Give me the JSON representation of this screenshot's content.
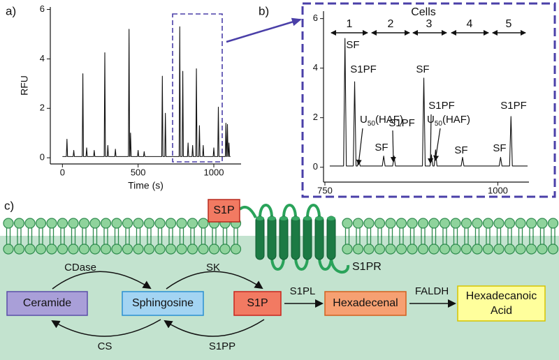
{
  "panel_labels": [
    "a)",
    "b)",
    "c)"
  ],
  "chart_data": [
    {
      "type": "line",
      "x_label": "Time (s)",
      "y_label": "RFU",
      "color": "#111111",
      "xlim": [
        -80,
        1180
      ],
      "xticks": [
        0,
        500,
        1000
      ],
      "ylim": [
        -0.25,
        6.1
      ],
      "yticks": [
        0,
        2,
        4,
        6
      ],
      "x": [
        0,
        26,
        30,
        34,
        71,
        75,
        79,
        131,
        135,
        139,
        156,
        160,
        164,
        206,
        210,
        214,
        276,
        280,
        284,
        296,
        300,
        304,
        346,
        350,
        354,
        436,
        440,
        444,
        446,
        450,
        454,
        496,
        500,
        504,
        536,
        540,
        544,
        656,
        660,
        664,
        676,
        680,
        684,
        771,
        775,
        779,
        791,
        795,
        799,
        826,
        830,
        834,
        856,
        860,
        864,
        881,
        885,
        889,
        901,
        905,
        909,
        926,
        930,
        934,
        996,
        1000,
        1004,
        1026,
        1030,
        1034,
        1076,
        1080,
        1084,
        1086,
        1090,
        1094,
        1096,
        1100,
        1104,
        1110
      ],
      "values": [
        0.05,
        0.05,
        0.75,
        0.05,
        0.05,
        0.3,
        0.05,
        0.05,
        3.4,
        0.05,
        0.05,
        0.4,
        0.05,
        0.05,
        0.3,
        0.05,
        0.05,
        4.25,
        0.05,
        0.05,
        0.5,
        0.05,
        0.05,
        0.35,
        0.05,
        0.05,
        5.2,
        0.05,
        0.05,
        1.0,
        0.05,
        0.05,
        0.3,
        0.05,
        0.05,
        0.25,
        0.05,
        0.05,
        3.3,
        0.05,
        0.05,
        1.8,
        0.05,
        0.05,
        5.3,
        0.05,
        0.05,
        3.5,
        0.05,
        0.05,
        0.6,
        0.05,
        0.05,
        0.5,
        0.05,
        0.05,
        3.6,
        0.05,
        0.05,
        1.3,
        0.05,
        0.05,
        0.5,
        0.05,
        0.05,
        0.4,
        0.05,
        0.05,
        2.05,
        0.05,
        0.05,
        1.4,
        0.05,
        0.05,
        1.35,
        0.05,
        0.05,
        0.6,
        0.05,
        0.05
      ]
    },
    {
      "type": "line",
      "color": "#111111",
      "xlim": [
        748,
        1045
      ],
      "xticks": [
        750,
        1000
      ],
      "ylim": [
        -0.6,
        6.3
      ],
      "yticks": [
        0,
        2,
        4,
        6
      ],
      "x": [
        757,
        777,
        779,
        781,
        791,
        793,
        795,
        797,
        799,
        801,
        833,
        835,
        837,
        848,
        850,
        852,
        891,
        893,
        895,
        902,
        904,
        906,
        908,
        910,
        912,
        947,
        949,
        951,
        1002,
        1004,
        1006,
        1017,
        1019,
        1021,
        1043
      ],
      "values": [
        0.05,
        0.05,
        5.2,
        0.05,
        0.05,
        3.45,
        0.05,
        0.05,
        0.3,
        0.05,
        0.05,
        0.45,
        0.05,
        0.05,
        0.45,
        0.05,
        0.05,
        3.6,
        0.05,
        0.05,
        0.5,
        0.05,
        0.05,
        0.7,
        0.05,
        0.05,
        0.4,
        0.05,
        0.05,
        0.4,
        0.05,
        0.05,
        2.05,
        0.05,
        0.05
      ],
      "cells_label": "Cells",
      "cell_groups": [
        "1",
        "2",
        "3",
        "4",
        "5"
      ],
      "annotations": [
        "SF",
        "S1PF",
        {
          "text": "U",
          "subscript": "50",
          "suffix": "(HAF)"
        },
        "SF",
        "S1PF",
        "SF",
        "S1PF",
        {
          "text": "U",
          "subscript": "50",
          "suffix": "(HAF)"
        },
        "SF",
        "SF",
        "S1PF"
      ]
    }
  ],
  "diagram": {
    "membrane_ligand": "S1P",
    "receptor": "S1PR",
    "nodes": [
      {
        "label": "Ceramide"
      },
      {
        "label": "Sphingosine"
      },
      {
        "label": "S1P"
      },
      {
        "label": "Hexadecenal"
      },
      {
        "label_lines": [
          "Hexadecanoic",
          "Acid"
        ]
      }
    ],
    "edges": [
      {
        "label": "CDase"
      },
      {
        "label": "SK"
      },
      {
        "label": "S1PL"
      },
      {
        "label": "FALDH"
      },
      {
        "label": "CS"
      },
      {
        "label": "S1PP"
      }
    ]
  }
}
